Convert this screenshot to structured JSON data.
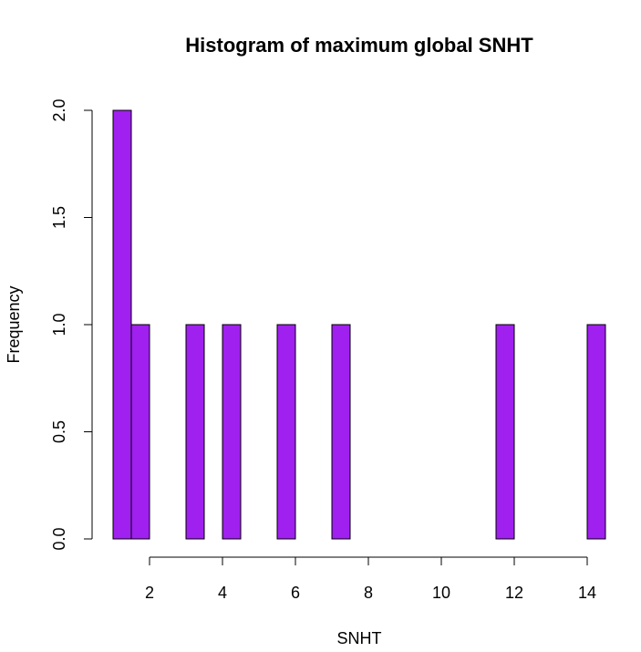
{
  "chart_data": {
    "type": "bar",
    "subtype": "histogram",
    "title": "Histogram of maximum global SNHT",
    "xlabel": "SNHT",
    "ylabel": "Frequency",
    "bar_color": "#a020f0",
    "bins": [
      {
        "x0": 1.0,
        "x1": 1.5,
        "count": 2
      },
      {
        "x0": 1.5,
        "x1": 2.0,
        "count": 1
      },
      {
        "x0": 2.0,
        "x1": 2.5,
        "count": 0
      },
      {
        "x0": 2.5,
        "x1": 3.0,
        "count": 0
      },
      {
        "x0": 3.0,
        "x1": 3.5,
        "count": 1
      },
      {
        "x0": 3.5,
        "x1": 4.0,
        "count": 0
      },
      {
        "x0": 4.0,
        "x1": 4.5,
        "count": 1
      },
      {
        "x0": 4.5,
        "x1": 5.0,
        "count": 0
      },
      {
        "x0": 5.0,
        "x1": 5.5,
        "count": 0
      },
      {
        "x0": 5.5,
        "x1": 6.0,
        "count": 1
      },
      {
        "x0": 6.0,
        "x1": 6.5,
        "count": 0
      },
      {
        "x0": 6.5,
        "x1": 7.0,
        "count": 0
      },
      {
        "x0": 7.0,
        "x1": 7.5,
        "count": 1
      },
      {
        "x0": 7.5,
        "x1": 8.0,
        "count": 0
      },
      {
        "x0": 8.0,
        "x1": 8.5,
        "count": 0
      },
      {
        "x0": 8.5,
        "x1": 9.0,
        "count": 0
      },
      {
        "x0": 9.0,
        "x1": 9.5,
        "count": 0
      },
      {
        "x0": 9.5,
        "x1": 10.0,
        "count": 0
      },
      {
        "x0": 10.0,
        "x1": 10.5,
        "count": 0
      },
      {
        "x0": 10.5,
        "x1": 11.0,
        "count": 0
      },
      {
        "x0": 11.0,
        "x1": 11.5,
        "count": 0
      },
      {
        "x0": 11.5,
        "x1": 12.0,
        "count": 1
      },
      {
        "x0": 12.0,
        "x1": 12.5,
        "count": 0
      },
      {
        "x0": 12.5,
        "x1": 13.0,
        "count": 0
      },
      {
        "x0": 13.0,
        "x1": 13.5,
        "count": 0
      },
      {
        "x0": 13.5,
        "x1": 14.0,
        "count": 0
      },
      {
        "x0": 14.0,
        "x1": 14.5,
        "count": 1
      }
    ],
    "x_ticks": [
      2,
      4,
      6,
      8,
      10,
      12,
      14
    ],
    "x_tick_labels": [
      "2",
      "4",
      "6",
      "8",
      "10",
      "12",
      "14"
    ],
    "y_ticks": [
      0,
      0.5,
      1,
      1.5,
      2
    ],
    "y_tick_labels": [
      "0.0",
      "0.5",
      "1.0",
      "1.5",
      "2.0"
    ],
    "xlim": [
      1.0,
      14.5
    ],
    "ylim": [
      0,
      2
    ],
    "grid": false,
    "legend": "none"
  }
}
